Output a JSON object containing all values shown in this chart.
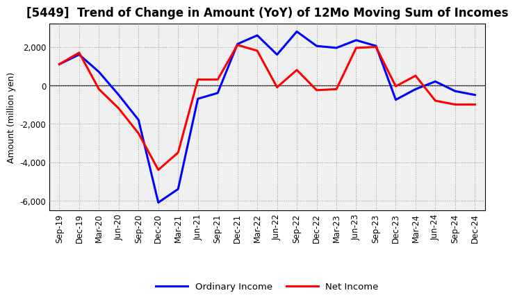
{
  "title": "[5449]  Trend of Change in Amount (YoY) of 12Mo Moving Sum of Incomes",
  "ylabel": "Amount (million yen)",
  "x_labels": [
    "Sep-19",
    "Dec-19",
    "Mar-20",
    "Jun-20",
    "Sep-20",
    "Dec-20",
    "Mar-21",
    "Jun-21",
    "Sep-21",
    "Dec-21",
    "Mar-22",
    "Jun-22",
    "Sep-22",
    "Dec-22",
    "Mar-23",
    "Jun-23",
    "Sep-23",
    "Dec-23",
    "Mar-24",
    "Jun-24",
    "Sep-24",
    "Dec-24"
  ],
  "ordinary_income": [
    1100,
    1600,
    700,
    -500,
    -1800,
    -6100,
    -5400,
    -700,
    -400,
    2150,
    2600,
    1600,
    2800,
    2050,
    1950,
    2350,
    2050,
    -750,
    -200,
    200,
    -300,
    -500
  ],
  "net_income": [
    1100,
    1700,
    -200,
    -1200,
    -2500,
    -4400,
    -3500,
    300,
    300,
    2100,
    1800,
    -100,
    800,
    -250,
    -200,
    1950,
    2000,
    -50,
    500,
    -800,
    -1000,
    -1000
  ],
  "ordinary_color": "#0000FF",
  "net_color": "#FF0000",
  "ylim": [
    -6500,
    3200
  ],
  "yticks": [
    -6000,
    -4000,
    -2000,
    0,
    2000
  ],
  "background_color": "#ffffff",
  "plot_bg_color": "#f0f0f0",
  "grid_color": "#999999",
  "legend_labels": [
    "Ordinary Income",
    "Net Income"
  ],
  "title_fontsize": 12,
  "axis_fontsize": 9,
  "tick_fontsize": 8.5
}
